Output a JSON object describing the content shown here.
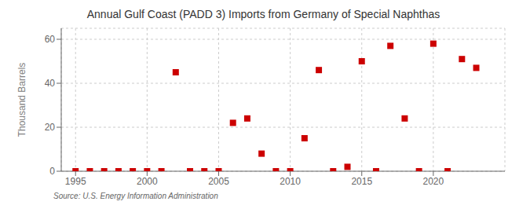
{
  "chart_data": {
    "type": "scatter",
    "title": "Annual Gulf Coast (PADD 3) Imports from Germany of Special Naphthas",
    "ylabel": "Thousand Barrels",
    "annotations": [
      "Source: U.S. Energy Information Administration"
    ],
    "x": [
      1995,
      1996,
      1997,
      1998,
      1999,
      2000,
      2001,
      2002,
      2003,
      2004,
      2005,
      2006,
      2007,
      2008,
      2009,
      2010,
      2011,
      2012,
      2013,
      2014,
      2015,
      2016,
      2017,
      2018,
      2019,
      2020,
      2021,
      2022,
      2023
    ],
    "values": [
      0,
      0,
      0,
      0,
      0,
      0,
      0,
      45,
      0,
      0,
      0,
      22,
      24,
      8,
      0,
      0,
      15,
      46,
      0,
      2,
      50,
      0,
      57,
      24,
      0,
      58,
      0,
      51,
      47
    ],
    "color": "#cc0000",
    "marker": "square",
    "xlim": [
      1994,
      2025
    ],
    "ylim": [
      0,
      65
    ],
    "xticks": [
      1995,
      2000,
      2005,
      2010,
      2015,
      2020
    ],
    "yticks": [
      0,
      20,
      40,
      60
    ],
    "grid": true
  }
}
